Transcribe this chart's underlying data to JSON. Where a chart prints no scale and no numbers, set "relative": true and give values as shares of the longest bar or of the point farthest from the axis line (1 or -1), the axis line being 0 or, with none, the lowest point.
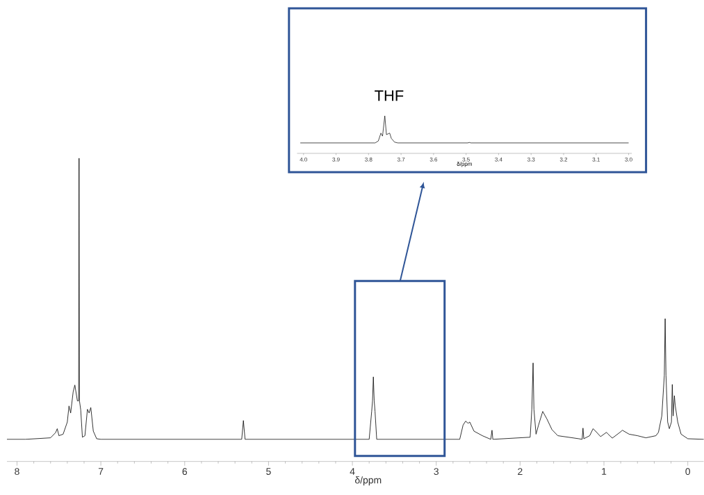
{
  "chart_data": [
    {
      "type": "line",
      "relative": true,
      "xlabel": "δ/ppm",
      "xlim": [
        8.12,
        -0.19
      ],
      "tick_labels": "x",
      "xticks": [
        8,
        7,
        6,
        5,
        4,
        3,
        2,
        1,
        0,
        {
          "value": 7.8,
          "label": null
        },
        {
          "value": 7.6,
          "label": null
        },
        {
          "value": 7.4,
          "label": null
        },
        {
          "value": 7.2,
          "label": null
        },
        {
          "value": 6.8,
          "label": null
        },
        {
          "value": 6.6,
          "label": null
        },
        {
          "value": 6.4,
          "label": null
        },
        {
          "value": 6.2,
          "label": null
        },
        {
          "value": 5.8,
          "label": null
        },
        {
          "value": 5.6,
          "label": null
        },
        {
          "value": 5.4,
          "label": null
        },
        {
          "value": 5.2,
          "label": null
        },
        {
          "value": 4.8,
          "label": null
        },
        {
          "value": 4.6,
          "label": null
        },
        {
          "value": 4.4,
          "label": null
        },
        {
          "value": 4.2,
          "label": null
        },
        {
          "value": 3.8,
          "label": null
        },
        {
          "value": 3.6,
          "label": null
        },
        {
          "value": 3.4,
          "label": null
        },
        {
          "value": 3.2,
          "label": null
        },
        {
          "value": 2.8,
          "label": null
        },
        {
          "value": 2.6,
          "label": null
        },
        {
          "value": 2.4,
          "label": null
        },
        {
          "value": 2.2,
          "label": null
        },
        {
          "value": 1.8,
          "label": null
        },
        {
          "value": 1.6,
          "label": null
        },
        {
          "value": 1.4,
          "label": null
        },
        {
          "value": 1.2,
          "label": null
        },
        {
          "value": 0.8,
          "label": null
        },
        {
          "value": 0.6,
          "label": null
        },
        {
          "value": 0.4,
          "label": null
        },
        {
          "value": 0.2,
          "label": null
        }
      ],
      "series": [
        {
          "color": "#000000",
          "x": [
            8.12,
            7.9,
            7.6,
            7.54,
            7.52,
            7.5,
            7.45,
            7.4,
            7.38,
            7.36,
            7.33,
            7.31,
            7.28,
            7.265,
            7.26,
            7.255,
            7.24,
            7.22,
            7.19,
            7.16,
            7.14,
            7.12,
            7.09,
            7.05,
            7.0,
            5.32,
            5.3,
            5.28,
            3.8,
            3.77,
            3.76,
            3.75,
            3.74,
            3.73,
            3.71,
            2.72,
            2.68,
            2.65,
            2.62,
            2.6,
            2.55,
            2.45,
            2.35,
            2.335,
            2.325,
            1.88,
            1.86,
            1.845,
            1.835,
            1.81,
            1.78,
            1.73,
            1.68,
            1.62,
            1.55,
            1.3,
            1.26,
            1.25,
            1.24,
            1.17,
            1.13,
            1.1,
            1.04,
            0.97,
            0.95,
            0.9,
            0.8,
            0.78,
            0.7,
            0.6,
            0.5,
            0.38,
            0.35,
            0.31,
            0.28,
            0.27,
            0.26,
            0.24,
            0.22,
            0.195,
            0.185,
            0.175,
            0.16,
            0.15,
            0.12,
            0.08,
            0.0,
            -0.19
          ],
          "values": [
            0.073,
            0.073,
            0.078,
            0.095,
            0.108,
            0.085,
            0.09,
            0.13,
            0.183,
            0.16,
            0.23,
            0.252,
            0.2,
            0.2,
            1.0,
            0.2,
            0.17,
            0.08,
            0.085,
            0.172,
            0.16,
            0.178,
            0.1,
            0.075,
            0.073,
            0.073,
            0.135,
            0.073,
            0.073,
            0.165,
            0.2,
            0.279,
            0.2,
            0.165,
            0.073,
            0.073,
            0.12,
            0.133,
            0.126,
            0.13,
            0.1,
            0.085,
            0.073,
            0.103,
            0.073,
            0.08,
            0.172,
            0.325,
            0.172,
            0.09,
            0.12,
            0.165,
            0.14,
            0.105,
            0.085,
            0.075,
            0.073,
            0.11,
            0.075,
            0.085,
            0.108,
            0.1,
            0.082,
            0.096,
            0.09,
            0.077,
            0.098,
            0.103,
            0.09,
            0.085,
            0.078,
            0.085,
            0.096,
            0.15,
            0.284,
            0.471,
            0.284,
            0.13,
            0.108,
            0.13,
            0.254,
            0.15,
            0.217,
            0.185,
            0.13,
            0.09,
            0.075,
            0.073
          ]
        }
      ]
    },
    {
      "type": "line",
      "relative": true,
      "xlabel": "δ/ppm",
      "xlim": [
        4.02,
        2.99
      ],
      "tick_labels": "x",
      "xticks": [
        {
          "value": 4.0,
          "label": "4.0"
        },
        {
          "value": 3.9,
          "label": "3.9"
        },
        {
          "value": 3.8,
          "label": "3.8"
        },
        {
          "value": 3.7,
          "label": "3.7"
        },
        {
          "value": 3.6,
          "label": "3.6"
        },
        {
          "value": 3.5,
          "label": "3.5"
        },
        {
          "value": 3.4,
          "label": "3.4"
        },
        {
          "value": 3.3,
          "label": "3.3"
        },
        {
          "value": 3.2,
          "label": "3.2"
        },
        {
          "value": 3.1,
          "label": "3.1"
        },
        {
          "value": 3.0,
          "label": "3.0"
        }
      ],
      "annotations": [
        "THF"
      ],
      "series": [
        {
          "color": "#000000",
          "x": [
            4.01,
            3.78,
            3.77,
            3.762,
            3.757,
            3.75,
            3.745,
            3.735,
            3.73,
            3.72,
            3.71,
            3.495,
            3.49,
            3.485,
            3.0
          ],
          "values": [
            0.278,
            0.278,
            0.33,
            0.54,
            0.46,
            1.0,
            0.5,
            0.54,
            0.4,
            0.3,
            0.278,
            0.278,
            0.29,
            0.278,
            0.278
          ]
        }
      ]
    }
  ]
}
